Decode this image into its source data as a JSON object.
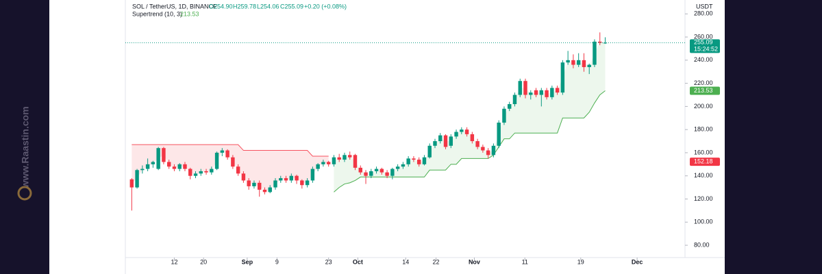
{
  "watermark": "www.Raastin.com",
  "chart_data": {
    "type": "candlestick",
    "title": "SOL / TetherUS, 1D, BINANCE",
    "ohlc_labels": [
      "O254.90",
      "H259.78",
      "L254.06",
      "C255.09",
      "+0.20 (+0.08%)"
    ],
    "indicator": {
      "name": "Supertrend (10, 3)",
      "value": 213.53,
      "value_label": "213.53"
    },
    "currency": "USDT",
    "last_price": 255.09,
    "last_price_label": "255.09",
    "countdown": "15:24:52",
    "marker_price": 152.18,
    "marker_price_label": "152.18",
    "colors": {
      "up": "#089981",
      "down": "#f23645",
      "trend_up": "#4caf50",
      "trend_down": "#f7525f"
    },
    "ylim": [
      67,
      292
    ],
    "yticks": [
      {
        "value": 80,
        "label": "80.00"
      },
      {
        "value": 100,
        "label": "100.00"
      },
      {
        "value": 120,
        "label": "120.00"
      },
      {
        "value": 140,
        "label": "140.00"
      },
      {
        "value": 160,
        "label": "160.00"
      },
      {
        "value": 180,
        "label": "180.00"
      },
      {
        "value": 200,
        "label": "200.00"
      },
      {
        "value": 220,
        "label": "220.00"
      },
      {
        "value": 240,
        "label": "240.00"
      },
      {
        "value": 260,
        "label": "260.00"
      },
      {
        "value": 280,
        "label": "280.00"
      }
    ],
    "xlim": [
      -1.2,
      104
    ],
    "xticks": [
      {
        "value": 8,
        "label": "12"
      },
      {
        "value": 13.5,
        "label": "20"
      },
      {
        "value": 21.7,
        "label": "Sep"
      },
      {
        "value": 27.3,
        "label": "9"
      },
      {
        "value": 37,
        "label": "23"
      },
      {
        "value": 42.5,
        "label": "Oct"
      },
      {
        "value": 51.5,
        "label": "14"
      },
      {
        "value": 57.2,
        "label": "22"
      },
      {
        "value": 64.4,
        "label": "Nov"
      },
      {
        "value": 73.9,
        "label": "11"
      },
      {
        "value": 84.4,
        "label": "19"
      },
      {
        "value": 95,
        "label": "Dec"
      }
    ],
    "candles": [
      [
        137,
        138,
        110,
        130
      ],
      [
        130,
        146,
        129,
        145
      ],
      [
        145,
        149,
        142,
        146
      ],
      [
        146,
        155,
        144,
        150
      ],
      [
        150,
        153,
        147,
        152
      ],
      [
        146,
        165,
        145,
        164
      ],
      [
        164,
        165,
        150,
        152
      ],
      [
        152,
        154,
        146,
        148
      ],
      [
        148,
        150,
        144,
        146
      ],
      [
        146,
        151,
        144,
        150
      ],
      [
        150,
        152,
        144,
        146
      ],
      [
        146,
        147,
        137,
        140
      ],
      [
        140,
        144,
        138,
        142
      ],
      [
        142,
        146,
        140,
        144
      ],
      [
        144,
        146,
        141,
        143
      ],
      [
        143,
        148,
        141,
        146
      ],
      [
        146,
        161,
        145,
        160
      ],
      [
        160,
        164,
        157,
        162
      ],
      [
        162,
        163,
        154,
        156
      ],
      [
        156,
        158,
        146,
        148
      ],
      [
        148,
        150,
        140,
        142
      ],
      [
        142,
        144,
        134,
        136
      ],
      [
        136,
        138,
        128,
        131
      ],
      [
        131,
        136,
        129,
        134
      ],
      [
        134,
        136,
        122,
        128
      ],
      [
        128,
        130,
        124,
        126
      ],
      [
        126,
        132,
        125,
        130
      ],
      [
        130,
        138,
        128,
        136
      ],
      [
        136,
        140,
        134,
        138
      ],
      [
        138,
        140,
        134,
        136
      ],
      [
        136,
        142,
        134,
        140
      ],
      [
        140,
        141,
        133,
        136
      ],
      [
        136,
        137,
        129,
        132
      ],
      [
        132,
        138,
        130,
        136
      ],
      [
        136,
        148,
        134,
        146
      ],
      [
        146,
        151,
        144,
        150
      ],
      [
        150,
        154,
        148,
        152
      ],
      [
        152,
        153,
        148,
        150
      ],
      [
        150,
        158,
        148,
        156
      ],
      [
        156,
        159,
        152,
        154
      ],
      [
        154,
        160,
        152,
        158
      ],
      [
        158,
        161,
        154,
        156
      ],
      [
        158,
        159,
        145,
        147
      ],
      [
        147,
        149,
        141,
        143
      ],
      [
        143,
        145,
        133,
        140
      ],
      [
        140,
        146,
        138,
        144
      ],
      [
        144,
        148,
        142,
        146
      ],
      [
        146,
        147,
        141,
        143
      ],
      [
        143,
        145,
        138,
        140
      ],
      [
        140,
        147,
        137,
        146
      ],
      [
        146,
        150,
        144,
        148
      ],
      [
        148,
        152,
        146,
        150
      ],
      [
        150,
        157,
        148,
        155
      ],
      [
        155,
        157,
        152,
        154
      ],
      [
        154,
        156,
        148,
        150
      ],
      [
        150,
        158,
        149,
        156
      ],
      [
        156,
        168,
        155,
        166
      ],
      [
        166,
        172,
        164,
        170
      ],
      [
        170,
        177,
        168,
        175
      ],
      [
        175,
        176,
        163,
        165
      ],
      [
        166,
        176,
        164,
        174
      ],
      [
        174,
        180,
        172,
        178
      ],
      [
        178,
        182,
        176,
        180
      ],
      [
        180,
        182,
        174,
        176
      ],
      [
        176,
        178,
        168,
        170
      ],
      [
        170,
        172,
        163,
        165
      ],
      [
        165,
        167,
        160,
        162
      ],
      [
        162,
        164,
        155,
        158
      ],
      [
        158,
        168,
        156,
        166
      ],
      [
        166,
        188,
        164,
        186
      ],
      [
        186,
        200,
        184,
        198
      ],
      [
        198,
        204,
        196,
        202
      ],
      [
        202,
        212,
        200,
        210
      ],
      [
        210,
        224,
        208,
        222
      ],
      [
        222,
        224,
        207,
        210
      ],
      [
        210,
        214,
        206,
        212
      ],
      [
        214,
        216,
        208,
        210
      ],
      [
        210,
        216,
        200,
        214
      ],
      [
        214,
        216,
        206,
        208
      ],
      [
        208,
        218,
        206,
        216
      ],
      [
        216,
        218,
        210,
        212
      ],
      [
        212,
        240,
        210,
        238
      ],
      [
        238,
        248,
        236,
        240
      ],
      [
        240,
        245,
        233,
        236
      ],
      [
        236,
        246,
        234,
        240
      ],
      [
        240,
        246,
        230,
        234
      ],
      [
        234,
        237,
        228,
        236
      ],
      [
        236,
        258,
        234,
        256
      ],
      [
        256,
        264,
        253,
        255
      ],
      [
        254.9,
        259.78,
        254.06,
        255.09
      ]
    ],
    "supertrend_down": [
      167,
      167,
      167,
      167,
      167,
      167,
      167,
      167,
      167,
      167,
      167,
      167,
      167,
      167,
      167,
      167,
      167,
      167,
      167,
      167,
      167,
      162,
      162,
      162,
      162,
      162,
      162,
      162,
      162,
      162,
      162,
      162,
      162,
      162,
      157,
      157,
      157,
      157,
      null,
      null,
      null,
      null,
      null,
      null,
      null,
      null,
      null,
      null,
      null,
      null,
      null,
      null,
      null,
      null,
      null,
      null,
      null,
      null,
      null,
      null,
      null,
      null,
      null,
      null,
      null,
      null,
      null,
      null,
      null,
      null,
      null,
      null,
      null,
      null,
      null,
      null,
      null,
      null,
      null,
      null,
      null,
      null,
      null,
      null,
      null,
      null,
      null,
      null,
      null,
      null
    ],
    "supertrend_up": [
      null,
      null,
      null,
      null,
      null,
      null,
      null,
      null,
      null,
      null,
      null,
      null,
      null,
      null,
      null,
      null,
      null,
      null,
      null,
      null,
      null,
      null,
      null,
      null,
      null,
      null,
      null,
      null,
      null,
      null,
      null,
      null,
      null,
      null,
      null,
      null,
      null,
      null,
      126,
      130,
      133,
      134,
      136,
      139,
      139,
      139,
      139,
      139,
      139,
      139,
      139,
      139,
      139,
      139,
      139,
      139,
      145,
      145,
      145,
      145,
      150,
      150,
      155,
      155,
      155,
      155,
      155,
      155,
      158,
      165,
      172,
      172,
      177,
      177,
      177,
      177,
      177,
      177,
      177,
      177,
      177,
      190,
      190,
      190,
      190,
      190,
      195,
      203,
      210,
      213.53
    ]
  }
}
